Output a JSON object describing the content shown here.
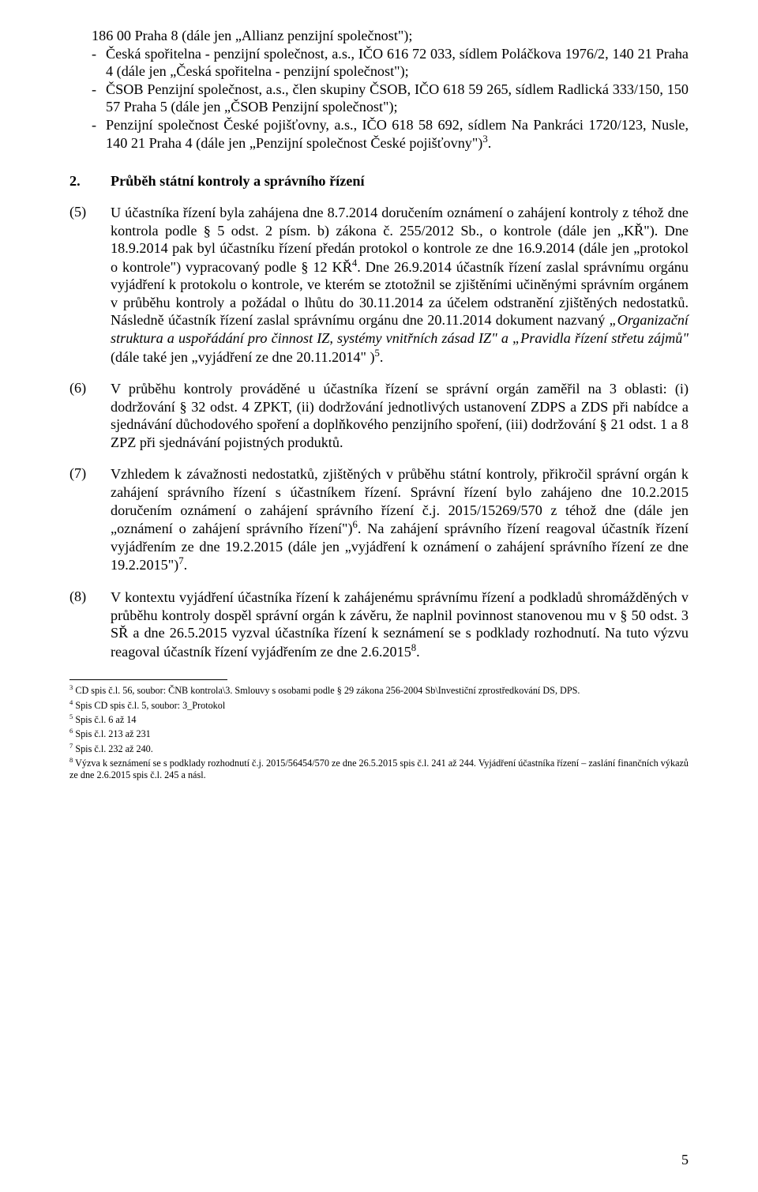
{
  "intro": {
    "line1": "186 00 Praha 8 (dále jen „Allianz penzijní společnost\");",
    "bullets": [
      {
        "dash": "-",
        "text": "Česká spořitelna - penzijní společnost, a.s., IČO 616 72 033, sídlem Poláčkova 1976/2, 140 21 Praha 4 (dále jen „Česká spořitelna - penzijní společnost\");"
      },
      {
        "dash": "-",
        "text": "ČSOB Penzijní společnost, a.s., člen skupiny ČSOB, IČO 618 59 265, sídlem Radlická 333/150, 150 57 Praha 5 (dále jen „ČSOB Penzijní společnost\");"
      },
      {
        "dash": "-",
        "text_pre": "Penzijní společnost České pojišťovny, a.s., IČO 618 58 692, sídlem Na Pankráci 1720/123, Nusle, 140 21 Praha 4 (dále jen „Penzijní společnost České pojišťovny\")",
        "sup": "3",
        "text_post": "."
      }
    ]
  },
  "heading": {
    "num": "2.",
    "text": "Průběh státní kontroly a správního řízení"
  },
  "paras": {
    "p5": {
      "num": "(5)",
      "pre": "U účastníka řízení byla zahájena dne 8.7.2014 doručením oznámení o zahájení kontroly z téhož dne kontrola podle § 5 odst. 2 písm. b) zákona č. 255/2012 Sb., o kontrole (dále jen „KŘ\"). Dne 18.9.2014 pak byl účastníku řízení předán protokol o kontrole ze dne 16.9.2014 (dále jen „protokol o kontrole\") vypracovaný podle § 12 KŘ",
      "sup1": "4",
      "mid": ". Dne 26.9.2014 účastník řízení zaslal správnímu orgánu vyjádření k protokolu o kontrole, ve kterém se ztotožnil se zjištěními učiněnými správním orgánem v průběhu kontroly a požádal o lhůtu do 30.11.2014 za účelem odstranění zjištěných nedostatků. Následně účastník řízení zaslal správnímu orgánu dne 20.11.2014 dokument nazvaný ",
      "italic": "„Organizační struktura a uspořádání pro činnost IZ, systémy vnitřních zásad IZ\" a „Pravidla řízení střetu zájmů\"",
      "after_italic": " (dále také jen „vyjádření ze dne 20.11.2014\" )",
      "sup2": "5",
      "post": "."
    },
    "p6": {
      "num": "(6)",
      "text": "V průběhu kontroly prováděné u účastníka řízení se správní orgán zaměřil na 3 oblasti: (i) dodržování § 32 odst. 4 ZPKT, (ii) dodržování jednotlivých ustanovení ZDPS a ZDS při nabídce a sjednávání důchodového spoření a doplňkového penzijního spoření, (iii) dodržování § 21 odst. 1 a 8 ZPZ při sjednávání pojistných produktů."
    },
    "p7": {
      "num": "(7)",
      "pre": "Vzhledem k závažnosti nedostatků, zjištěných v průběhu státní kontroly, přikročil správní orgán k zahájení správního řízení s účastníkem řízení. Správní řízení bylo zahájeno dne 10.2.2015 doručením oznámení o zahájení správního řízení č.j. 2015/15269/570 z téhož dne (dále jen „oznámení o zahájení správního řízení\")",
      "sup1": "6",
      "mid": ". Na zahájení správního řízení reagoval účastník řízení vyjádřením ze dne 19.2.2015 (dále jen „vyjádření k oznámení o zahájení správního řízení ze dne 19.2.2015\")",
      "sup2": "7",
      "post": "."
    },
    "p8": {
      "num": "(8)",
      "pre": "V kontextu vyjádření účastníka řízení k zahájenému správnímu řízení a podkladů shromážděných v průběhu kontroly dospěl správní orgán k závěru, že naplnil povinnost stanovenou mu v § 50 odst. 3 SŘ a dne 26.5.2015 vyzval účastníka řízení k seznámení se s podklady  rozhodnutí. Na tuto výzvu reagoval účastník řízení vyjádřením ze dne 2.6.2015",
      "sup": "8",
      "post": "."
    }
  },
  "footnotes": {
    "f3": {
      "num": "3",
      "text": " CD spis č.l. 56, soubor: ČNB kontrola\\3. Smlouvy s osobami podle § 29 zákona 256-2004 Sb\\Investiční zprostředkování DS, DPS."
    },
    "f4": {
      "num": "4",
      "text": " Spis CD spis č.l. 5, soubor: 3_Protokol"
    },
    "f5": {
      "num": "5",
      "text": " Spis č.l. 6 až 14"
    },
    "f6": {
      "num": "6",
      "text": " Spis č.l. 213 až 231"
    },
    "f7": {
      "num": "7",
      "text": " Spis č.l. 232 až 240."
    },
    "f8": {
      "num": "8",
      "text": " Výzva k seznámení se s podklady rozhodnutí č.j. 2015/56454/570 ze dne 26.5.2015 spis č.l. 241 až 244. Vyjádření účastníka řízení – zaslání finančních výkazů ze dne 2.6.2015 spis č.l. 245 a násl."
    }
  },
  "pageNumber": "5"
}
